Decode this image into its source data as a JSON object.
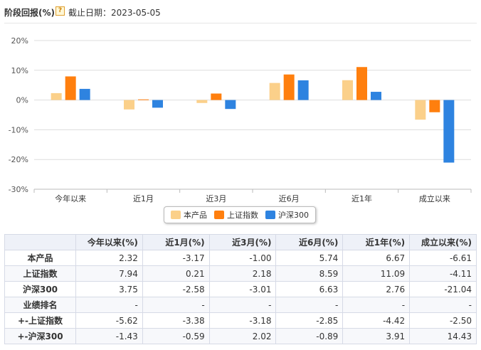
{
  "header": {
    "title": "阶段回报(%)",
    "help_icon": "?",
    "date_text": "截止日期：2023-05-05"
  },
  "colors": {
    "本产品": "#fbd08a",
    "上证指数": "#ff7f0e",
    "沪深300": "#2e83e0",
    "grid": "#dddddd",
    "axis": "#bbbbbb"
  },
  "chart_data": {
    "type": "bar",
    "categories": [
      "今年以来",
      "近1月",
      "近3月",
      "近6月",
      "近1年",
      "成立以来"
    ],
    "series": [
      {
        "name": "本产品",
        "values": [
          2.32,
          -3.17,
          -1.0,
          5.74,
          6.67,
          -6.61
        ]
      },
      {
        "name": "上证指数",
        "values": [
          7.94,
          0.21,
          2.18,
          8.59,
          11.09,
          -4.11
        ]
      },
      {
        "name": "沪深300",
        "values": [
          3.75,
          -2.58,
          -3.01,
          6.63,
          2.76,
          -21.04
        ]
      }
    ],
    "ylim": [
      -30,
      20
    ],
    "yticks": [
      20,
      10,
      0,
      -10,
      -20,
      -30
    ],
    "ytick_labels": [
      "20%",
      "10%",
      "0%",
      "-10%",
      "-20%",
      "-30%"
    ],
    "grid": true,
    "legend": "bottom-center"
  },
  "table": {
    "headers": [
      "",
      "今年以来(%)",
      "近1月(%)",
      "近3月(%)",
      "近6月(%)",
      "近1年(%)",
      "成立以来(%)"
    ],
    "rows": [
      {
        "label": "本产品",
        "cells": [
          "2.32",
          "-3.17",
          "-1.00",
          "5.74",
          "6.67",
          "-6.61"
        ]
      },
      {
        "label": "上证指数",
        "cells": [
          "7.94",
          "0.21",
          "2.18",
          "8.59",
          "11.09",
          "-4.11"
        ]
      },
      {
        "label": "沪深300",
        "cells": [
          "3.75",
          "-2.58",
          "-3.01",
          "6.63",
          "2.76",
          "-21.04"
        ]
      },
      {
        "label": "业绩排名",
        "cells": [
          "-",
          "-",
          "-",
          "-",
          "-",
          "-"
        ]
      },
      {
        "label": "+-上证指数",
        "cells": [
          "-5.62",
          "-3.38",
          "-3.18",
          "-2.85",
          "-4.42",
          "-2.50"
        ]
      },
      {
        "label": "+-沪深300",
        "cells": [
          "-1.43",
          "-0.59",
          "2.02",
          "-0.89",
          "3.91",
          "14.43"
        ]
      }
    ]
  }
}
